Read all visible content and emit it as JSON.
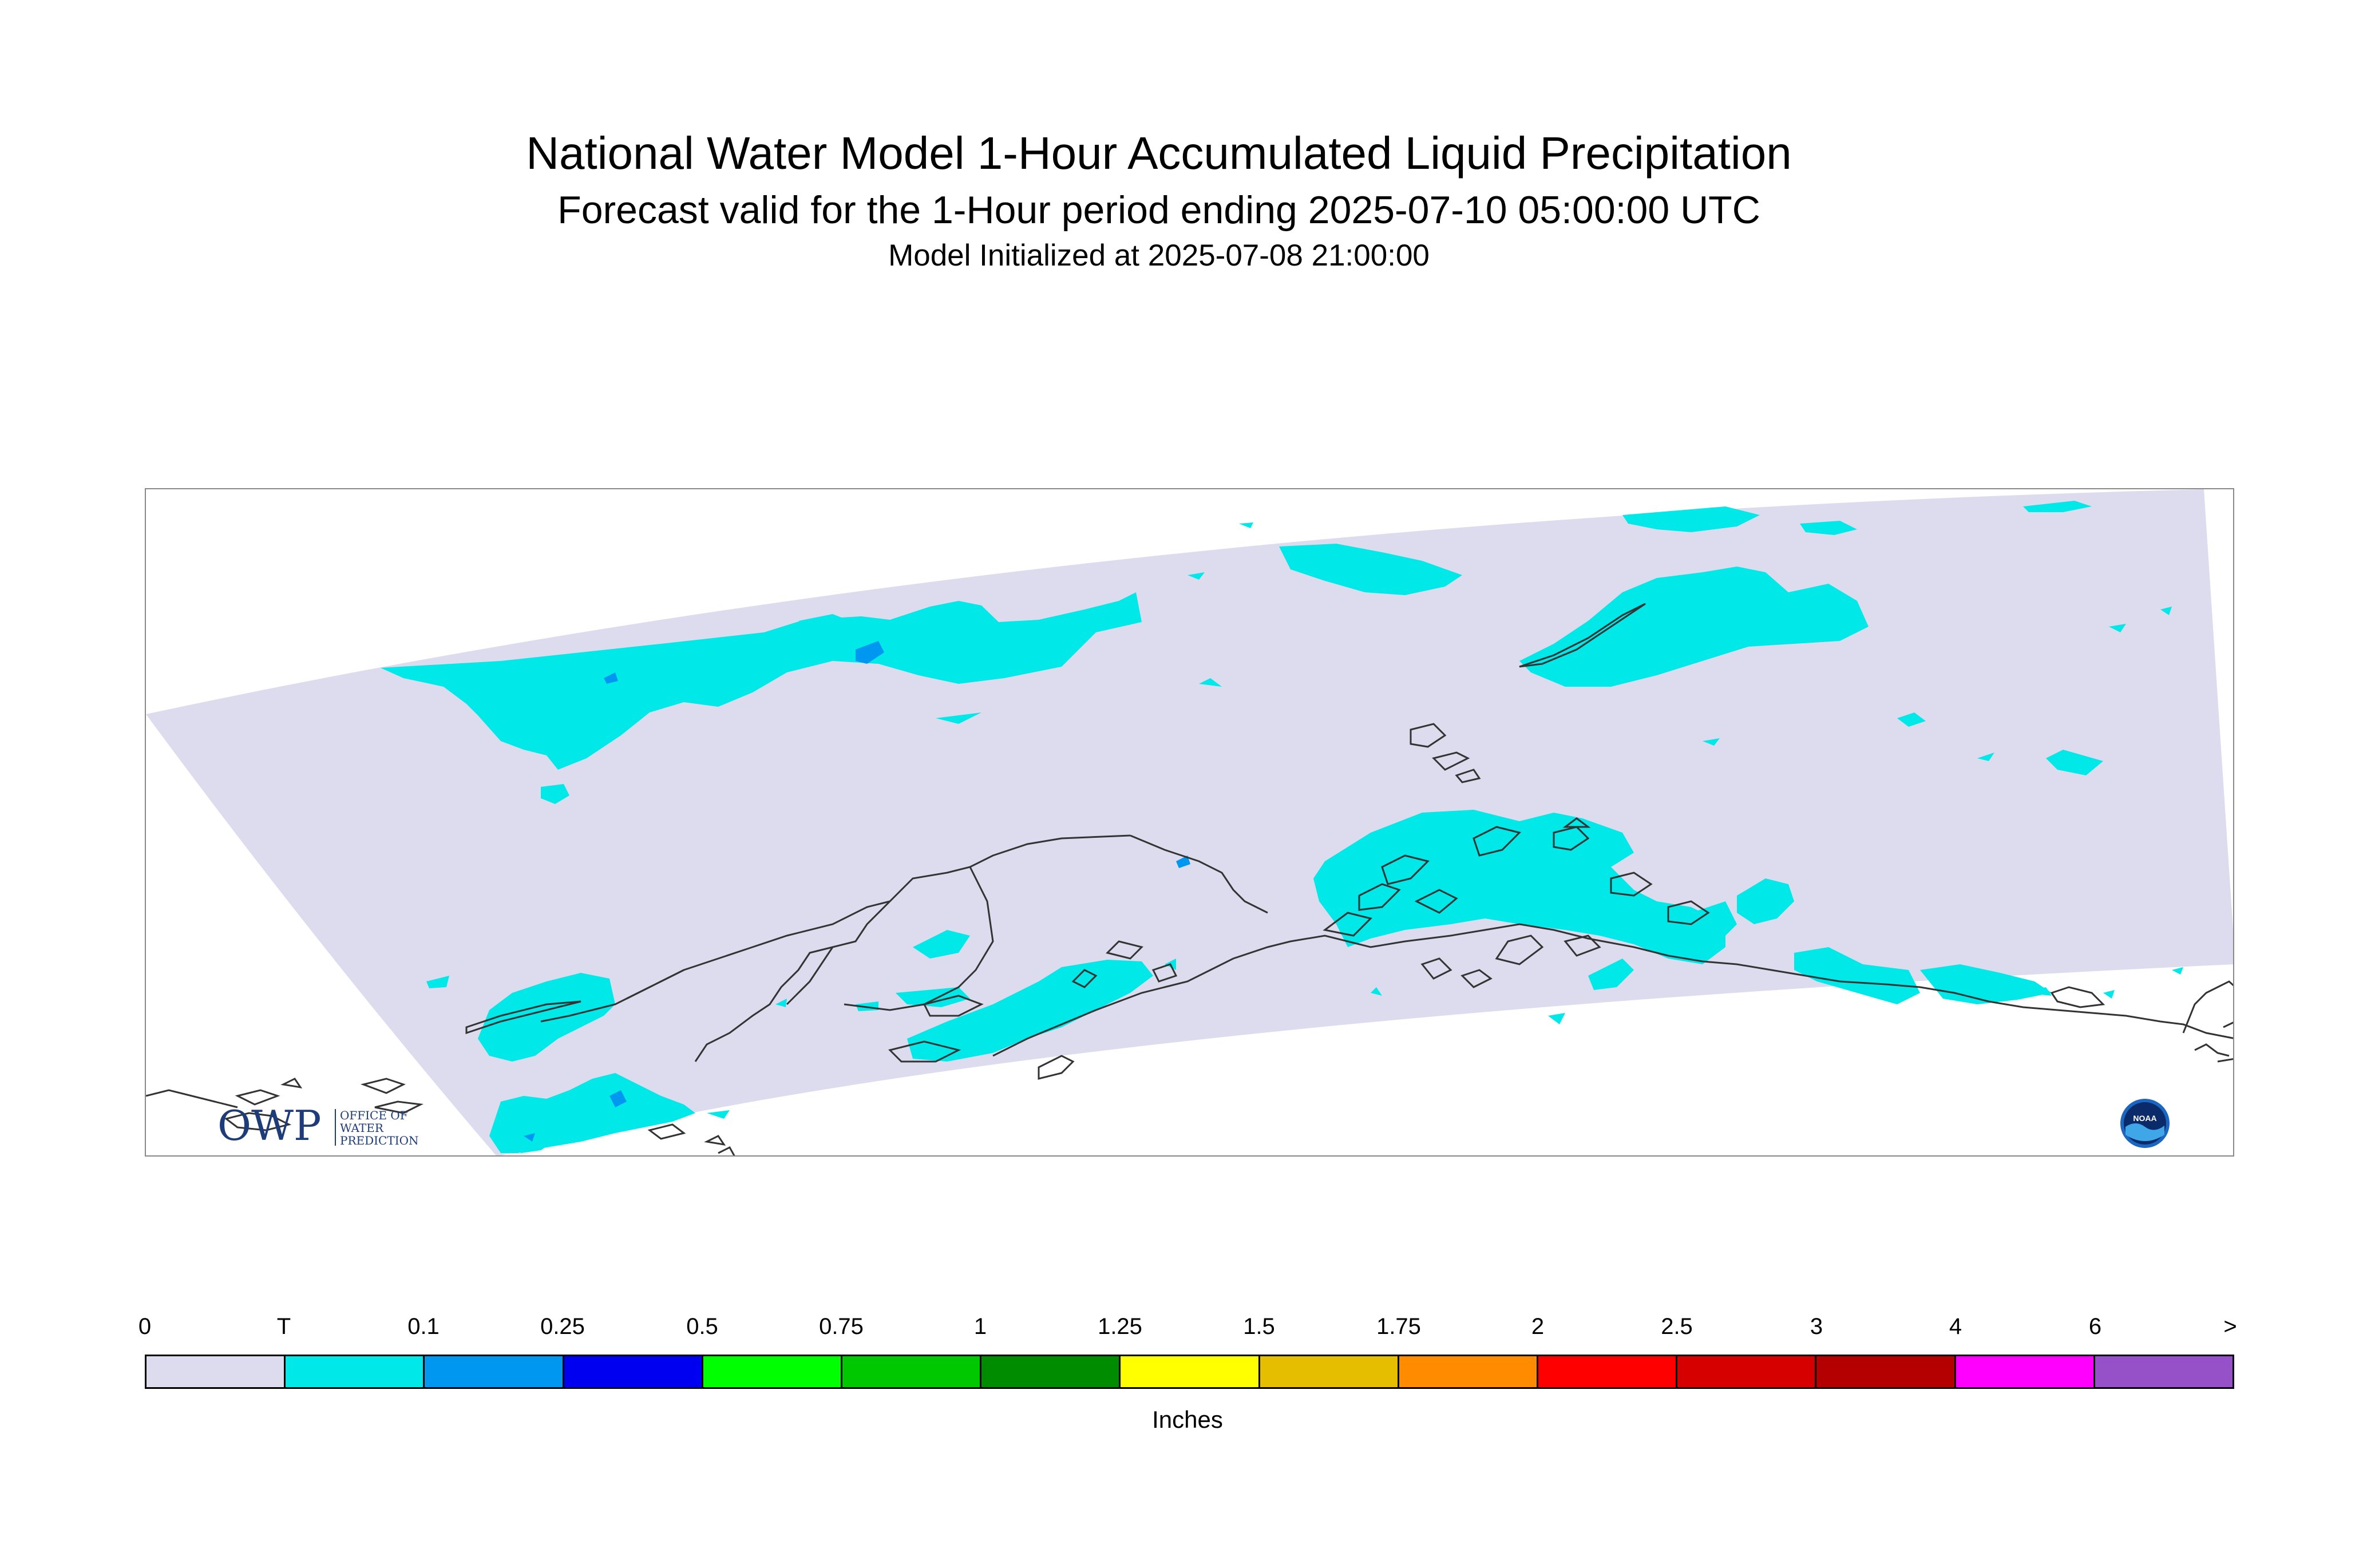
{
  "title": "National Water Model 1-Hour Accumulated Liquid Precipitation",
  "subtitle": "Forecast valid for the 1-Hour period ending 2025-07-10 05:00:00 UTC",
  "init_line": "Model Initialized at 2025-07-08 21:00:00",
  "logos": {
    "owp_letters": "OWP",
    "owp_text": [
      "OFFICE OF",
      "WATER",
      "PREDICTION"
    ],
    "noaa_text": "NOAA"
  },
  "colors": {
    "domain_fill": "#dcdcee",
    "trace": "#00e8e8",
    "light_blue": "#0097f0",
    "coastline": "#333333"
  },
  "colorbar": {
    "unit_label": "Inches",
    "ticks": [
      "0",
      "T",
      "0.1",
      "0.25",
      "0.5",
      "0.75",
      "1",
      "1.25",
      "1.5",
      "1.75",
      "2",
      "2.5",
      "3",
      "4",
      "6",
      ">"
    ],
    "colors": [
      "#dcdcee",
      "#00e8e8",
      "#0097f0",
      "#0000f0",
      "#00ff00",
      "#00c800",
      "#008c00",
      "#ffff00",
      "#e6be00",
      "#ff8c00",
      "#ff0000",
      "#d70000",
      "#b40000",
      "#ff00ff",
      "#9650c8"
    ]
  }
}
